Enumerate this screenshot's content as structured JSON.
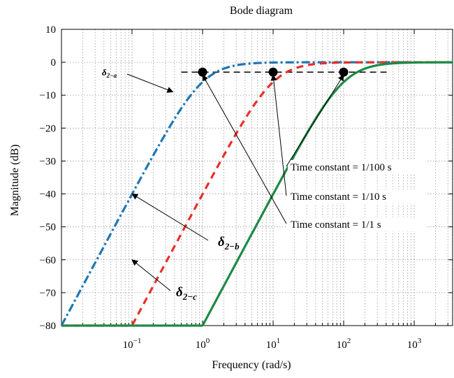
{
  "chart_data": {
    "type": "line",
    "title": "Bode diagram",
    "xlabel": "Frequency (rad/s)",
    "ylabel": "Magnitude (dB)",
    "x_scale": "log",
    "xlim": [
      0.01,
      3500
    ],
    "ylim": [
      -80,
      10
    ],
    "grid": true,
    "x_ticks": [
      {
        "value": 0.1,
        "base": "10",
        "exp": "−1"
      },
      {
        "value": 1,
        "base": "10",
        "exp": "0"
      },
      {
        "value": 10,
        "base": "10",
        "exp": "1"
      },
      {
        "value": 100,
        "base": "10",
        "exp": "2"
      },
      {
        "value": 1000,
        "base": "10",
        "exp": "3"
      }
    ],
    "y_ticks": [
      {
        "value": 10,
        "label": "10"
      },
      {
        "value": 0,
        "label": "0"
      },
      {
        "value": -10,
        "label": "−10"
      },
      {
        "value": -20,
        "label": "−20"
      },
      {
        "value": -30,
        "label": "−30"
      },
      {
        "value": -40,
        "label": "−40"
      },
      {
        "value": -50,
        "label": "−50"
      },
      {
        "value": -60,
        "label": "−60"
      },
      {
        "value": -70,
        "label": "−70"
      },
      {
        "value": -80,
        "label": "−80"
      }
    ],
    "series": [
      {
        "label_base": "δ",
        "label_sub": "2−a",
        "corner_frequency": 1,
        "color": "#1f77b4",
        "style": "dashdot"
      },
      {
        "label_base": "δ",
        "label_sub": "2−b",
        "corner_frequency": 10,
        "color": "#e8302a",
        "style": "dashed"
      },
      {
        "label_base": "δ",
        "label_sub": "2−c",
        "corner_frequency": 100,
        "color": "#1e8a45",
        "style": "solid"
      }
    ],
    "corner_markers": [
      {
        "x": 1,
        "y": -3
      },
      {
        "x": 10,
        "y": -3
      },
      {
        "x": 100,
        "y": -3
      }
    ],
    "reference_line": {
      "y": -3,
      "x_range": [
        0.5,
        420
      ]
    },
    "annotations": [
      {
        "text": "Time constant = 1/100 s",
        "points_to_x": 100
      },
      {
        "text": "Time constant = 1/10 s",
        "points_to_x": 10
      },
      {
        "text": "Time constant = 1/1 s",
        "points_to_x": 1
      }
    ]
  }
}
